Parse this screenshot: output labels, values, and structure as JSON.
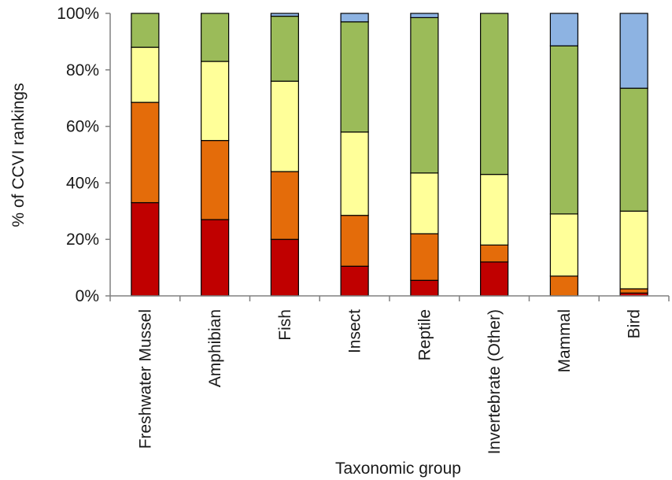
{
  "chart_data": {
    "type": "bar",
    "stacked": true,
    "title": "",
    "xlabel": "Taxonomic group",
    "ylabel": "% of CCVI rankings",
    "ylim": [
      0,
      100
    ],
    "yticks": [
      "0%",
      "20%",
      "40%",
      "60%",
      "80%",
      "100%"
    ],
    "grid": false,
    "legend": "none",
    "categories": [
      "Freshwater Mussel",
      "Amphibian",
      "Fish",
      "Insect",
      "Reptile",
      "Invertebrate (Other)",
      "Mammal",
      "Bird"
    ],
    "series": [
      {
        "color": "#c00000",
        "values": [
          33,
          27,
          20,
          10.5,
          5.5,
          12,
          0,
          1
        ]
      },
      {
        "color": "#e46c0a",
        "values": [
          35.5,
          28,
          24,
          18,
          16.5,
          6,
          7,
          1.5
        ]
      },
      {
        "color": "#ffff99",
        "values": [
          19.5,
          28,
          32,
          29.5,
          21.5,
          25,
          22,
          27.5
        ]
      },
      {
        "color": "#9bbb59",
        "values": [
          12,
          17,
          23,
          39,
          55,
          57,
          59.5,
          43.5
        ]
      },
      {
        "color": "#8db3e2",
        "values": [
          0,
          0,
          1,
          3,
          1.5,
          0,
          11.5,
          26.5
        ]
      }
    ]
  }
}
